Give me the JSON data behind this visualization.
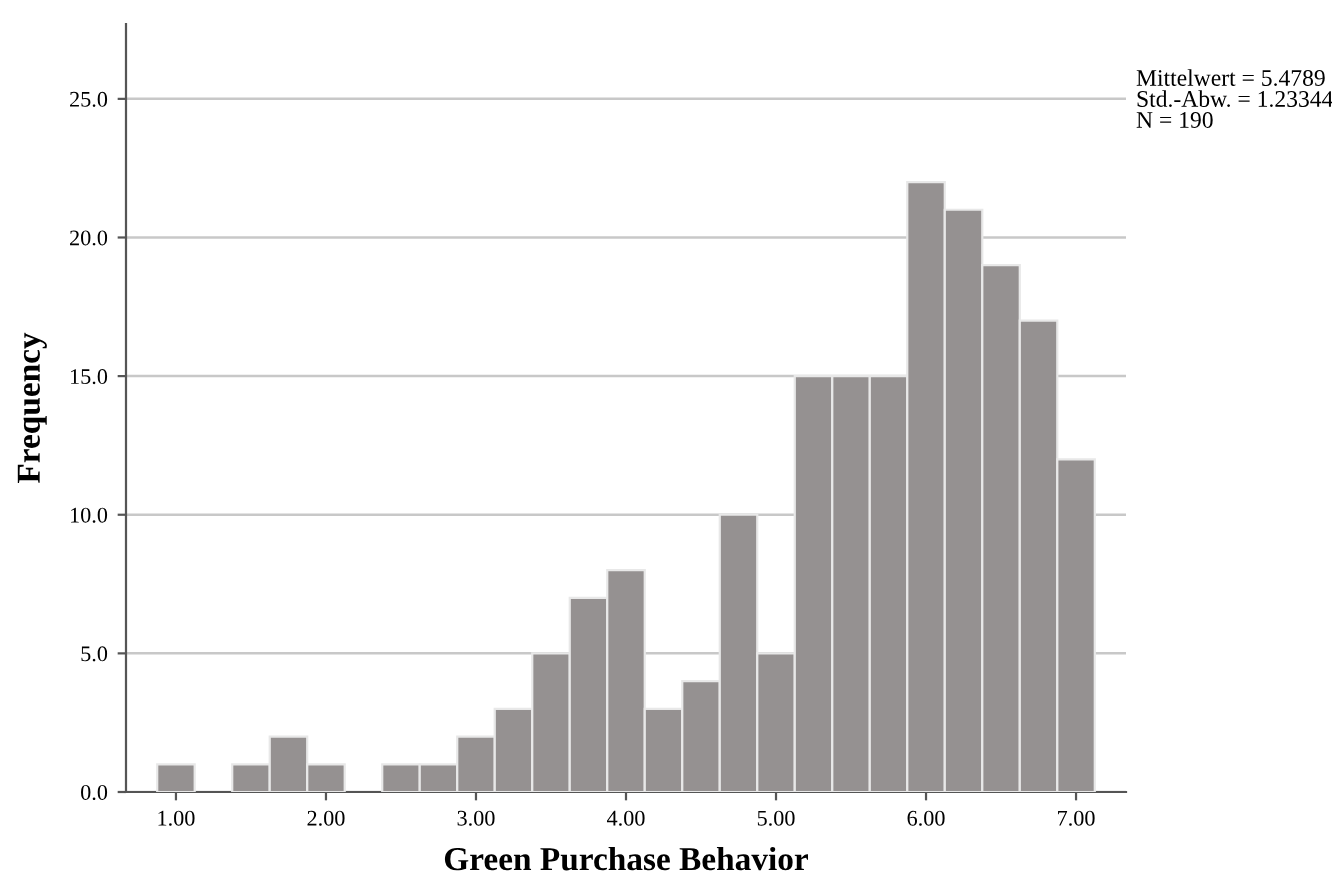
{
  "chart_data": {
    "type": "histogram",
    "xlabel": "Green Purchase Behavior",
    "ylabel": "Frequency",
    "bins": [
      0.875,
      1.125,
      1.375,
      1.625,
      1.875,
      2.125,
      2.375,
      2.625,
      2.875,
      3.125,
      3.375,
      3.625,
      3.875,
      4.125,
      4.375,
      4.625,
      4.875,
      5.125,
      5.375,
      5.625,
      5.875,
      6.125,
      6.375,
      6.625,
      6.875,
      7.125
    ],
    "values": [
      1,
      0,
      1,
      2,
      1,
      0,
      1,
      1,
      2,
      3,
      5,
      7,
      8,
      3,
      4,
      10,
      5,
      15,
      15,
      15,
      22,
      21,
      19,
      17,
      12
    ],
    "color": "#959191",
    "xlim": [
      0.667,
      7.333
    ],
    "xticks": [
      {
        "value": 1,
        "label": "1.00"
      },
      {
        "value": 2,
        "label": "2.00"
      },
      {
        "value": 3,
        "label": "3.00"
      },
      {
        "value": 4,
        "label": "4.00"
      },
      {
        "value": 5,
        "label": "5.00"
      },
      {
        "value": 6,
        "label": "6.00"
      },
      {
        "value": 7,
        "label": "7.00"
      }
    ],
    "ylim": [
      0,
      27.7
    ],
    "yticks": [
      {
        "value": 0,
        "label": "0.0"
      },
      {
        "value": 5,
        "label": "5.0"
      },
      {
        "value": 10,
        "label": "10.0"
      },
      {
        "value": 15,
        "label": "15.0"
      },
      {
        "value": 20,
        "label": "20.0"
      },
      {
        "value": 25,
        "label": "25.0"
      }
    ],
    "grid": "y",
    "annotations": [
      "Mittelwert = 5.4789",
      "Std.-Abw. = 1.23344",
      "N = 190"
    ]
  }
}
